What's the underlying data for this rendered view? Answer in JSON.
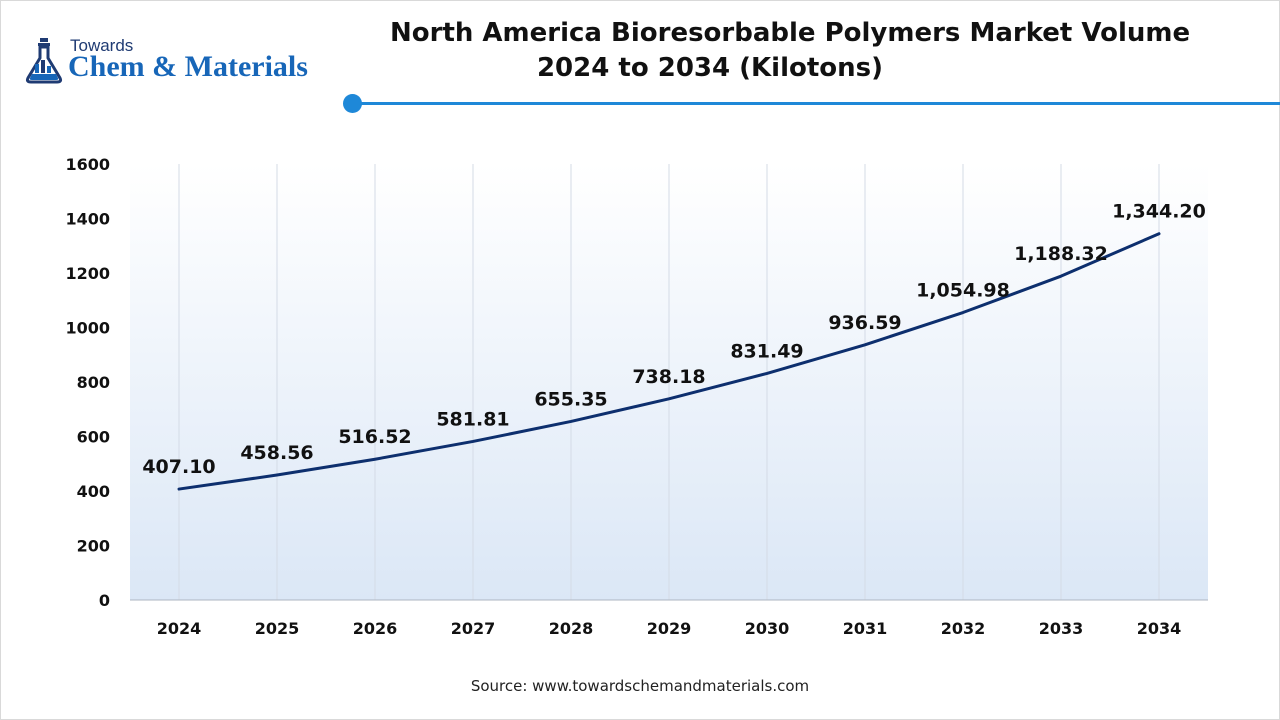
{
  "header": {
    "logo_small": "Towards",
    "logo_main": "Chem & Materials",
    "title_line1": "North America Bioresorbable Polymers Market Volume",
    "title_line2": "2024 to 2034 (Kilotons)"
  },
  "footer": {
    "source": "Source: www.towardschemandmaterials.com"
  },
  "colors": {
    "line": "#0d2f6e",
    "accent": "#1e88d8",
    "plot_fill_top": "#ffffff",
    "plot_fill_bottom": "#dbe7f6"
  },
  "chart_data": {
    "type": "line",
    "categories": [
      "2024",
      "2025",
      "2026",
      "2027",
      "2028",
      "2029",
      "2030",
      "2031",
      "2032",
      "2033",
      "2034"
    ],
    "values": [
      407.1,
      458.56,
      516.52,
      581.81,
      655.35,
      738.18,
      831.49,
      936.59,
      1054.98,
      1188.32,
      1344.2
    ],
    "data_labels": [
      "407.10",
      "458.56",
      "516.52",
      "581.81",
      "655.35",
      "738.18",
      "831.49",
      "936.59",
      "1,054.98",
      "1,188.32",
      "1,344.20"
    ],
    "y_ticks": [
      "0",
      "200",
      "400",
      "600",
      "800",
      "1000",
      "1200",
      "1400",
      "1600"
    ],
    "ylim": [
      0,
      1600
    ],
    "grid": "vertical",
    "legend": "none"
  }
}
